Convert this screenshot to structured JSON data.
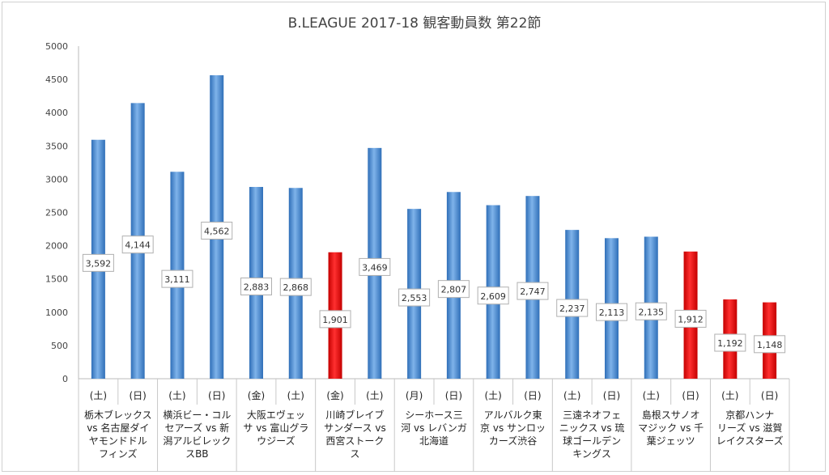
{
  "chart_data": {
    "type": "bar",
    "title": "B.LEAGUE 2017-18 観客動員数 第22節",
    "ylim": [
      0,
      5000
    ],
    "yticks": [
      0,
      500,
      1000,
      1500,
      2000,
      2500,
      3000,
      3500,
      4000,
      4500,
      5000
    ],
    "grid": false,
    "colors": {
      "normal": "#4f8fd6",
      "highlight": "#e00000"
    },
    "bars": [
      {
        "day": "(土)",
        "value": 3592,
        "label": "3,592",
        "highlight": false
      },
      {
        "day": "(日)",
        "value": 4144,
        "label": "4,144",
        "highlight": false
      },
      {
        "day": "(土)",
        "value": 3111,
        "label": "3,111",
        "highlight": false
      },
      {
        "day": "(日)",
        "value": 4562,
        "label": "4,562",
        "highlight": false
      },
      {
        "day": "(金)",
        "value": 2883,
        "label": "2,883",
        "highlight": false
      },
      {
        "day": "(土)",
        "value": 2868,
        "label": "2,868",
        "highlight": false
      },
      {
        "day": "(金)",
        "value": 1901,
        "label": "1,901",
        "highlight": true
      },
      {
        "day": "(土)",
        "value": 3469,
        "label": "3,469",
        "highlight": false
      },
      {
        "day": "(月)",
        "value": 2553,
        "label": "2,553",
        "highlight": false
      },
      {
        "day": "(日)",
        "value": 2807,
        "label": "2,807",
        "highlight": false
      },
      {
        "day": "(土)",
        "value": 2609,
        "label": "2,609",
        "highlight": false
      },
      {
        "day": "(日)",
        "value": 2747,
        "label": "2,747",
        "highlight": false
      },
      {
        "day": "(土)",
        "value": 2237,
        "label": "2,237",
        "highlight": false
      },
      {
        "day": "(日)",
        "value": 2113,
        "label": "2,113",
        "highlight": false
      },
      {
        "day": "(土)",
        "value": 2135,
        "label": "2,135",
        "highlight": false
      },
      {
        "day": "(日)",
        "value": 1912,
        "label": "1,912",
        "highlight": true
      },
      {
        "day": "(土)",
        "value": 1192,
        "label": "1,192",
        "highlight": true
      },
      {
        "day": "(日)",
        "value": 1148,
        "label": "1,148",
        "highlight": true
      }
    ],
    "categories": [
      [
        "栃木ブレックス",
        "vs 名古屋ダイ",
        "ヤモンドドル",
        "フィンズ"
      ],
      [
        "横浜ビー・コル",
        "セアーズ vs 新",
        "潟アルビレック",
        "スBB"
      ],
      [
        "大阪エヴェッ",
        "サ vs 富山グラ",
        "ウジーズ"
      ],
      [
        "川崎ブレイブ",
        "サンダース vs",
        "西宮ストーク",
        "ス"
      ],
      [
        "シーホース三",
        "河 vs レバンガ",
        "北海道"
      ],
      [
        "アルバルク東",
        "京 vs サンロッ",
        "カーズ渋谷"
      ],
      [
        "三遠ネオフェ",
        "ニックス vs 琉",
        "球ゴールデン",
        "キングス"
      ],
      [
        "島根スサノオ",
        "マジック vs 千",
        "葉ジェッツ"
      ],
      [
        "京都ハンナ",
        "リーズ vs 滋賀",
        "レイクスターズ"
      ]
    ]
  }
}
